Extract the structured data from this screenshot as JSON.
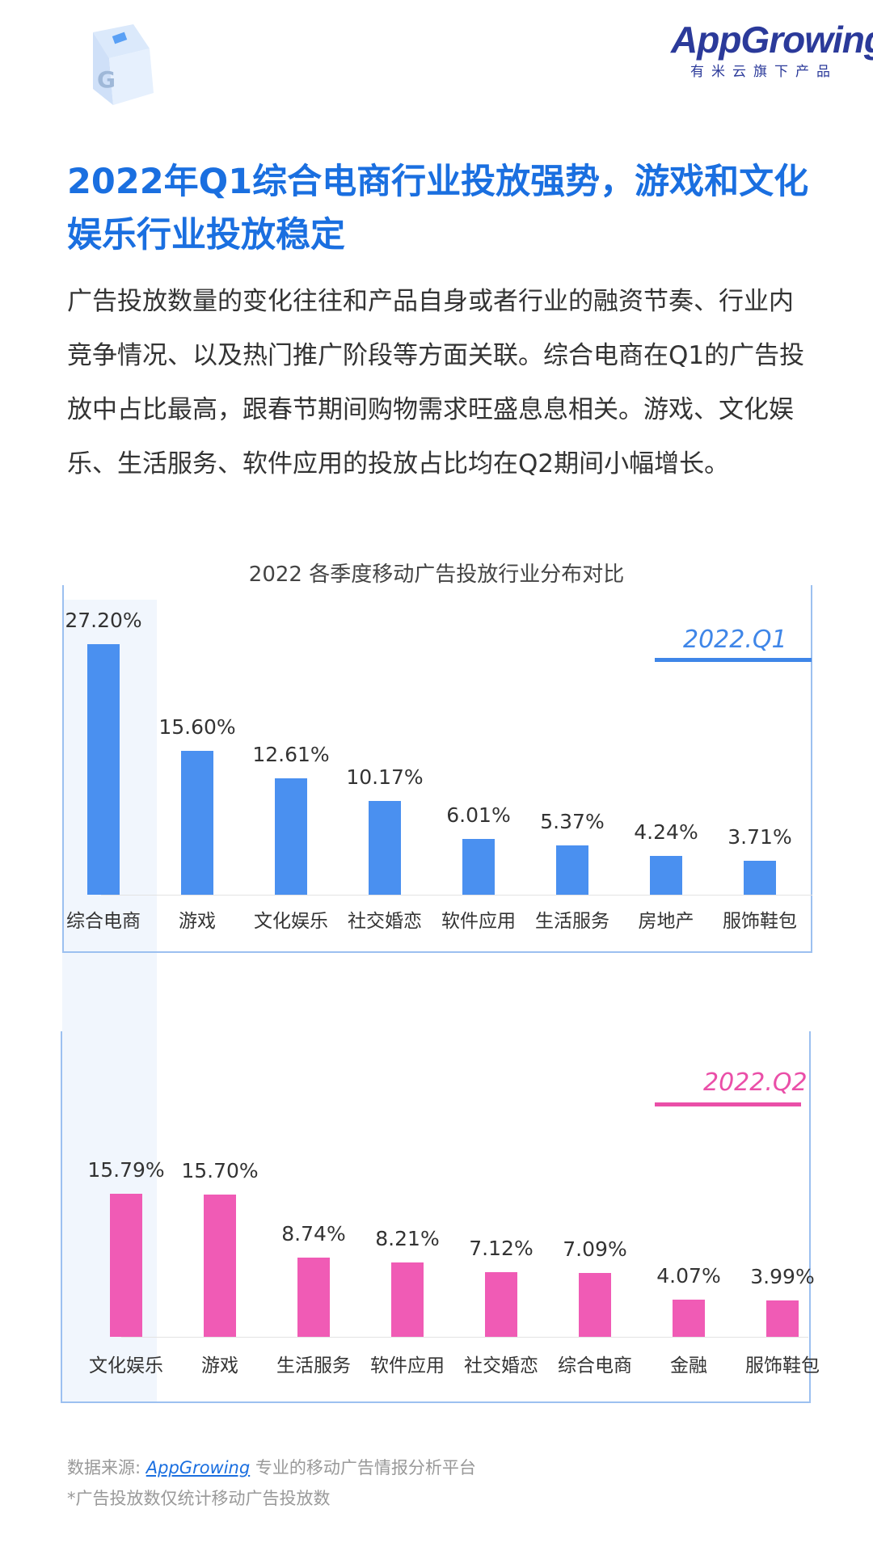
{
  "header": {
    "logo_brand": "AppGrowing",
    "logo_sub": "有米云旗下产品"
  },
  "title": "2022年Q1综合电商行业投放强势，游戏和文化娱乐行业投放稳定",
  "body": "广告投放数量的变化往往和产品自身或者行业的融资节奏、行业内竞争情况、以及热门推广阶段等方面关联。综合电商在Q1的广告投放中占比最高，跟春节期间购物需求旺盛息息相关。游戏、文化娱乐、生活服务、软件应用的投放占比均在Q2期间小幅增长。",
  "chart_data": [
    {
      "type": "bar",
      "title": "2022 各季度移动广告投放行业分布对比",
      "legend": "2022.Q1",
      "color": "#4a90f0",
      "legend_color": "#3f86e8",
      "categories": [
        "综合电商",
        "游戏",
        "文化娱乐",
        "社交婚恋",
        "软件应用",
        "生活服务",
        "房地产",
        "服饰鞋包"
      ],
      "values": [
        27.2,
        15.6,
        12.61,
        10.17,
        6.01,
        5.37,
        4.24,
        3.71
      ],
      "labels": [
        "27.20%",
        "15.60%",
        "12.61%",
        "10.17%",
        "6.01%",
        "5.37%",
        "4.24%",
        "3.71%"
      ]
    },
    {
      "type": "bar",
      "legend": "2022.Q2",
      "color": "#f05bb5",
      "legend_color": "#ea4fa8",
      "categories": [
        "文化娱乐",
        "游戏",
        "生活服务",
        "软件应用",
        "社交婚恋",
        "综合电商",
        "金融",
        "服饰鞋包"
      ],
      "values": [
        15.79,
        15.7,
        8.74,
        8.21,
        7.12,
        7.09,
        4.07,
        3.99
      ],
      "labels": [
        "15.79%",
        "15.70%",
        "8.74%",
        "8.21%",
        "7.12%",
        "7.09%",
        "4.07%",
        "3.99%"
      ]
    }
  ],
  "footer": {
    "source_prefix": "数据来源: ",
    "source_link": "AppGrowing",
    "source_suffix": " 专业的移动广告情报分析平台",
    "note": "*广告投放数仅统计移动广告投放数"
  }
}
